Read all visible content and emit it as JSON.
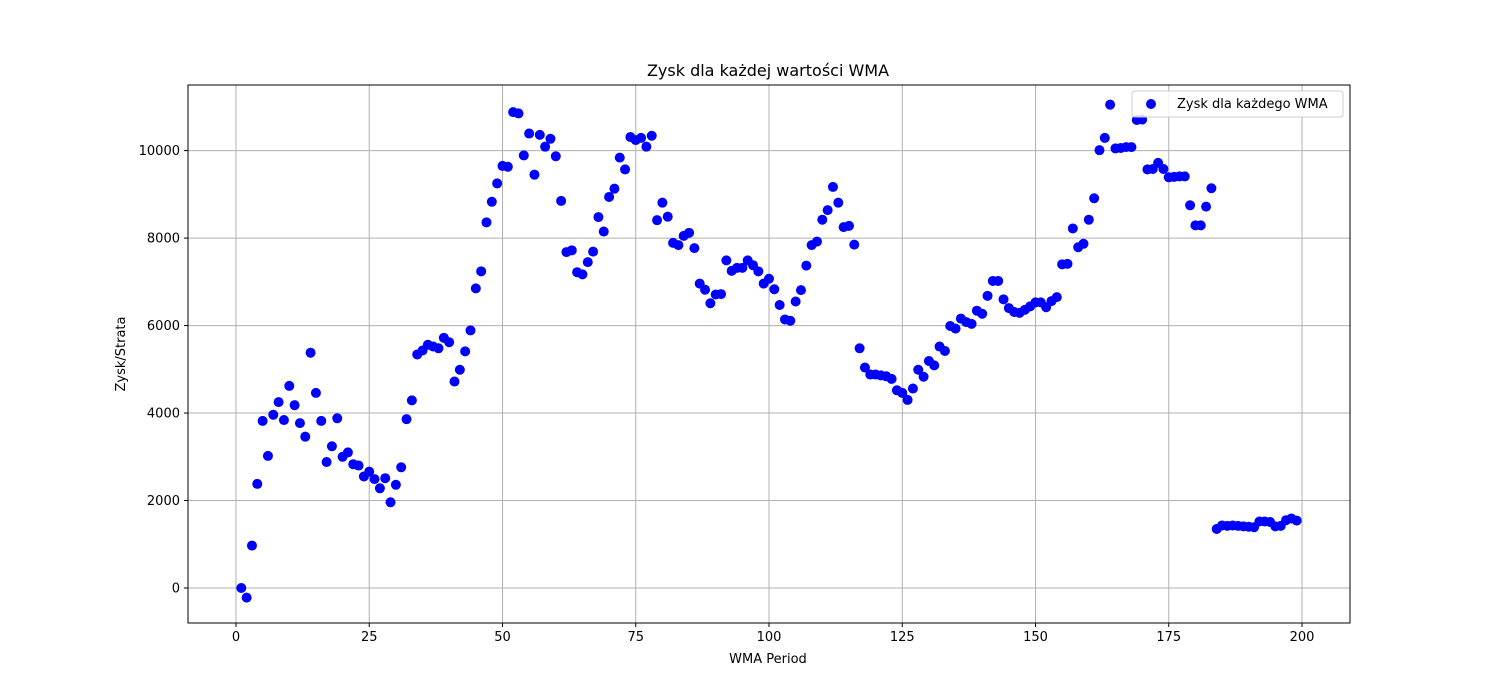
{
  "chart_data": {
    "type": "scatter",
    "title": "Zysk dla każdej wartości WMA",
    "xlabel": "WMA Period",
    "ylabel": "Zysk/Strata",
    "xlim": [
      -9,
      209
    ],
    "ylim": [
      -800,
      11500
    ],
    "xticks": [
      0,
      25,
      50,
      75,
      100,
      125,
      150,
      175,
      200
    ],
    "yticks": [
      0,
      2000,
      4000,
      6000,
      8000,
      10000
    ],
    "grid": true,
    "legend": {
      "position": "top-right",
      "entries": [
        "Zysk dla każdego WMA"
      ]
    },
    "colors": {
      "points": "#0000ff",
      "grid": "#b0b0b0",
      "axes": "#000000"
    },
    "series": [
      {
        "name": "Zysk dla każdego WMA",
        "x": [
          1,
          2,
          3,
          4,
          5,
          6,
          7,
          8,
          9,
          10,
          11,
          12,
          13,
          14,
          15,
          16,
          17,
          18,
          19,
          20,
          21,
          22,
          23,
          24,
          25,
          26,
          27,
          28,
          29,
          30,
          31,
          32,
          33,
          34,
          35,
          36,
          37,
          38,
          39,
          40,
          41,
          42,
          43,
          44,
          45,
          46,
          47,
          48,
          49,
          50,
          51,
          52,
          53,
          54,
          55,
          56,
          57,
          58,
          59,
          60,
          61,
          62,
          63,
          64,
          65,
          66,
          67,
          68,
          69,
          70,
          71,
          72,
          73,
          74,
          75,
          76,
          77,
          78,
          79,
          80,
          81,
          82,
          83,
          84,
          85,
          86,
          87,
          88,
          89,
          90,
          91,
          92,
          93,
          94,
          95,
          96,
          97,
          98,
          99,
          100,
          101,
          102,
          103,
          104,
          105,
          106,
          107,
          108,
          109,
          110,
          111,
          112,
          113,
          114,
          115,
          116,
          117,
          118,
          119,
          120,
          121,
          122,
          123,
          124,
          125,
          126,
          127,
          128,
          129,
          130,
          131,
          132,
          133,
          134,
          135,
          136,
          137,
          138,
          139,
          140,
          141,
          142,
          143,
          144,
          145,
          146,
          147,
          148,
          149,
          150,
          151,
          152,
          153,
          154,
          155,
          156,
          157,
          158,
          159,
          160,
          161,
          162,
          163,
          164,
          165,
          166,
          167,
          168,
          169,
          170,
          171,
          172,
          173,
          174,
          175,
          176,
          177,
          178,
          179,
          180,
          181,
          182,
          183,
          184,
          185,
          186,
          187,
          188,
          189,
          190,
          191,
          192,
          193,
          194,
          195,
          196,
          197,
          198,
          199
        ],
        "y": [
          0,
          -220,
          970,
          2380,
          3820,
          3020,
          3960,
          4250,
          3840,
          4620,
          4180,
          3770,
          3460,
          5380,
          4460,
          3820,
          2880,
          3240,
          3880,
          3000,
          3100,
          2830,
          2800,
          2550,
          2660,
          2490,
          2280,
          2510,
          1960,
          2360,
          2760,
          3860,
          4290,
          5340,
          5430,
          5560,
          5520,
          5480,
          5720,
          5620,
          4720,
          4990,
          5410,
          5890,
          6850,
          7240,
          8360,
          8830,
          9250,
          9650,
          9630,
          10880,
          10850,
          9890,
          10390,
          9450,
          10360,
          10090,
          10270,
          9870,
          8850,
          7680,
          7720,
          7220,
          7170,
          7450,
          7690,
          8480,
          8150,
          8940,
          9130,
          9840,
          9570,
          10310,
          10240,
          10290,
          10090,
          10340,
          8410,
          8810,
          8490,
          7890,
          7840,
          8050,
          8120,
          7770,
          6960,
          6820,
          6510,
          6710,
          6720,
          7490,
          7250,
          7320,
          7320,
          7490,
          7380,
          7240,
          6960,
          7070,
          6830,
          6470,
          6140,
          6110,
          6550,
          6810,
          7370,
          7840,
          7920,
          8420,
          8640,
          9170,
          8810,
          8250,
          8280,
          7850,
          5480,
          5040,
          4880,
          4880,
          4860,
          4840,
          4780,
          4520,
          4460,
          4300,
          4560,
          4990,
          4830,
          5190,
          5090,
          5520,
          5420,
          5990,
          5930,
          6160,
          6080,
          6040,
          6340,
          6270,
          6680,
          7020,
          7020,
          6600,
          6400,
          6310,
          6290,
          6360,
          6440,
          6530,
          6530,
          6420,
          6560,
          6650,
          7400,
          7410,
          8220,
          7790,
          7870,
          8420,
          8910,
          10010,
          10290,
          11050,
          10050,
          10060,
          10080,
          10080,
          10700,
          10710,
          9570,
          9580,
          9720,
          9580,
          9390,
          9400,
          9410,
          9410,
          8750,
          8290,
          8290,
          8720,
          9140,
          1350,
          1430,
          1420,
          1430,
          1420,
          1410,
          1400,
          1390,
          1520,
          1520,
          1510,
          1410,
          1420,
          1550,
          1590,
          1540
        ]
      }
    ]
  }
}
